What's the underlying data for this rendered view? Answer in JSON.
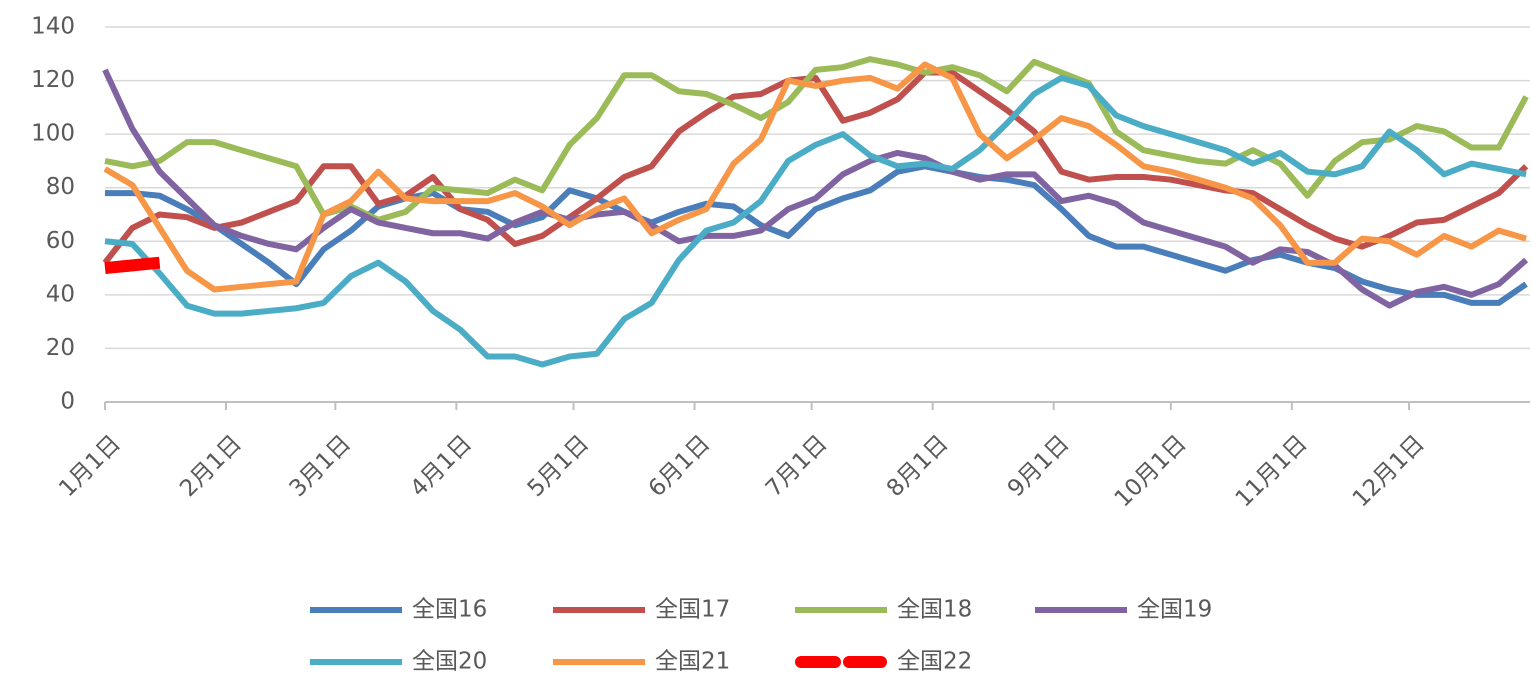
{
  "chart_data": {
    "type": "line",
    "x": [
      0,
      7,
      14,
      21,
      28,
      35,
      42,
      49,
      56,
      63,
      70,
      77,
      84,
      91,
      98,
      105,
      112,
      119,
      126,
      133,
      140,
      147,
      154,
      161,
      168,
      175,
      182,
      189,
      196,
      203,
      210,
      217,
      224,
      231,
      238,
      245,
      252,
      259,
      266,
      273,
      280,
      287,
      294,
      301,
      308,
      315,
      322,
      329,
      336,
      343,
      350,
      357,
      364
    ],
    "xlim": [
      0,
      365
    ],
    "xticks": [
      {
        "value": 0,
        "label": "1月1日"
      },
      {
        "value": 31,
        "label": "2月1日"
      },
      {
        "value": 59,
        "label": "3月1日"
      },
      {
        "value": 90,
        "label": "4月1日"
      },
      {
        "value": 120,
        "label": "5月1日"
      },
      {
        "value": 151,
        "label": "6月1日"
      },
      {
        "value": 181,
        "label": "7月1日"
      },
      {
        "value": 212,
        "label": "8月1日"
      },
      {
        "value": 243,
        "label": "9月1日"
      },
      {
        "value": 273,
        "label": "10月1日"
      },
      {
        "value": 304,
        "label": "11月1日"
      },
      {
        "value": 334,
        "label": "12月1日"
      }
    ],
    "ylim": [
      0,
      140
    ],
    "yticks": [
      0,
      20,
      40,
      60,
      80,
      100,
      120,
      140
    ],
    "grid": true,
    "legend": "bottom",
    "series": [
      {
        "name": "全国16",
        "color": "#4a7ebb",
        "values": [
          78,
          78,
          77,
          72,
          66,
          59,
          52,
          44,
          57,
          64,
          73,
          76,
          78,
          72,
          71,
          66,
          69,
          79,
          76,
          71,
          67,
          71,
          74,
          73,
          66,
          62,
          72,
          76,
          79,
          86,
          88,
          86,
          84,
          83,
          81,
          72,
          62,
          58,
          58,
          55,
          52,
          49,
          53,
          55,
          52,
          50,
          45,
          42,
          40,
          40,
          37,
          37,
          44
        ]
      },
      {
        "name": "全国17",
        "color": "#c0504d",
        "values": [
          52,
          65,
          70,
          69,
          65,
          67,
          71,
          75,
          88,
          88,
          74,
          77,
          84,
          72,
          68,
          59,
          62,
          69,
          76,
          84,
          88,
          101,
          108,
          114,
          115,
          120,
          121,
          105,
          108,
          113,
          123,
          123,
          116,
          109,
          101,
          86,
          83,
          84,
          84,
          83,
          81,
          79,
          78,
          72,
          66,
          61,
          58,
          62,
          67,
          68,
          73,
          78,
          88
        ]
      },
      {
        "name": "全国18",
        "color": "#9bbb59",
        "values": [
          90,
          88,
          90,
          97,
          97,
          94,
          91,
          88,
          70,
          73,
          68,
          71,
          80,
          79,
          78,
          83,
          79,
          96,
          106,
          122,
          122,
          116,
          115,
          111,
          106,
          112,
          124,
          125,
          128,
          126,
          123,
          125,
          122,
          116,
          127,
          123,
          119,
          101,
          94,
          92,
          90,
          89,
          94,
          89,
          77,
          90,
          97,
          98,
          103,
          101,
          95,
          95,
          114
        ]
      },
      {
        "name": "全国19",
        "color": "#8064a2",
        "values": [
          124,
          102,
          86,
          76,
          66,
          62,
          59,
          57,
          65,
          72,
          67,
          65,
          63,
          63,
          61,
          67,
          71,
          68,
          70,
          71,
          66,
          60,
          62,
          62,
          64,
          72,
          76,
          85,
          90,
          93,
          91,
          86,
          83,
          85,
          85,
          75,
          77,
          74,
          67,
          64,
          61,
          58,
          52,
          57,
          56,
          51,
          42,
          36,
          41,
          43,
          40,
          44,
          53
        ]
      },
      {
        "name": "全国20",
        "color": "#4bacc6",
        "values": [
          60,
          59,
          48,
          36,
          33,
          33,
          34,
          35,
          37,
          47,
          52,
          45,
          34,
          27,
          17,
          17,
          14,
          17,
          18,
          31,
          37,
          53,
          64,
          67,
          75,
          90,
          96,
          100,
          92,
          88,
          89,
          87,
          94,
          104,
          115,
          121,
          118,
          107,
          103,
          100,
          97,
          94,
          89,
          93,
          86,
          85,
          88,
          101,
          94,
          85,
          89,
          87,
          85
        ]
      },
      {
        "name": "全国21",
        "color": "#f79646",
        "values": [
          87,
          81,
          65,
          49,
          42,
          43,
          44,
          45,
          70,
          75,
          86,
          76,
          75,
          75,
          75,
          78,
          73,
          66,
          72,
          76,
          63,
          68,
          72,
          89,
          98,
          120,
          118,
          120,
          121,
          117,
          126,
          121,
          100,
          91,
          98,
          106,
          103,
          96,
          88,
          86,
          83,
          80,
          76,
          66,
          52,
          52,
          61,
          60,
          55,
          62,
          58,
          64,
          61
        ]
      },
      {
        "name": "全国22",
        "color": "#ff0000",
        "dashed": true,
        "values": [
          50,
          51,
          52,
          null,
          null,
          null,
          null,
          null,
          null,
          null,
          null,
          null,
          null,
          null,
          null,
          null,
          null,
          null,
          null,
          null,
          null,
          null,
          null,
          null,
          null,
          null,
          null,
          null,
          null,
          null,
          null,
          null,
          null,
          null,
          null,
          null,
          null,
          null,
          null,
          null,
          null,
          null,
          null,
          null,
          null,
          null,
          null,
          null,
          null,
          null,
          null,
          null,
          null
        ]
      }
    ]
  }
}
